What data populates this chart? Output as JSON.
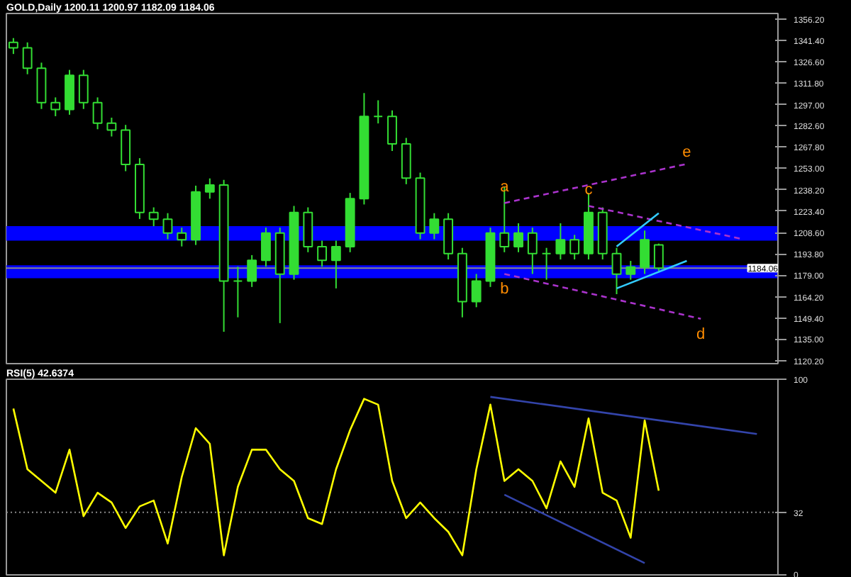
{
  "chart_data": [
    {
      "type": "candlestick",
      "title": "GOLD,Daily 1200.11 1200.97 1182.09 1184.06",
      "color": "#33dd33",
      "categories": [
        null,
        null,
        null,
        null,
        null,
        null,
        null,
        null,
        null,
        null,
        null,
        null,
        null,
        null,
        null,
        null,
        null,
        null,
        null,
        null,
        null,
        null,
        null,
        null,
        null,
        null,
        null,
        null,
        null,
        null,
        null,
        null,
        null,
        null,
        null,
        null,
        null,
        null,
        null,
        null,
        null,
        null,
        null,
        null,
        null,
        null,
        null,
        null,
        null,
        null,
        null,
        null,
        null,
        null,
        null
      ],
      "ohlc": [
        [
          1340,
          1343,
          1332,
          1336.3
        ],
        [
          1336.3,
          1340,
          1318,
          1322.1
        ],
        [
          1322.1,
          1326,
          1294,
          1298.4
        ],
        [
          1298.4,
          1302,
          1289,
          1293.6
        ],
        [
          1293.6,
          1321,
          1290,
          1317.3
        ],
        [
          1317.3,
          1321,
          1294,
          1298.4
        ],
        [
          1298.4,
          1302,
          1280,
          1284.2
        ],
        [
          1284.2,
          1288,
          1275,
          1279.4
        ],
        [
          1279.4,
          1283,
          1251,
          1255.7
        ],
        [
          1255.7,
          1260,
          1218,
          1222.5
        ],
        [
          1222.5,
          1226,
          1213,
          1217.8
        ],
        [
          1217.8,
          1222,
          1204,
          1208.3
        ],
        [
          1208.3,
          1212,
          1199,
          1203.6
        ],
        [
          1203.6,
          1241,
          1200,
          1236.7
        ],
        [
          1236.7,
          1246,
          1232,
          1241.5
        ],
        [
          1241.5,
          1245,
          1140,
          1175.1
        ],
        [
          1175.1,
          1185,
          1150,
          1175.1
        ],
        [
          1175.1,
          1193,
          1171,
          1189.4
        ],
        [
          1189.4,
          1212,
          1185,
          1208.3
        ],
        [
          1208.3,
          1212,
          1146,
          1179.9
        ],
        [
          1179.9,
          1227,
          1176,
          1222.5
        ],
        [
          1222.5,
          1226,
          1195,
          1198.8
        ],
        [
          1198.8,
          1203,
          1185,
          1189.4
        ],
        [
          1189.4,
          1203,
          1170,
          1198.8
        ],
        [
          1198.8,
          1236,
          1195,
          1232.0
        ],
        [
          1232.0,
          1305,
          1228,
          1288.9
        ],
        [
          1288.9,
          1300,
          1284,
          1288.9
        ],
        [
          1288.9,
          1293,
          1265,
          1269.9
        ],
        [
          1269.9,
          1274,
          1242,
          1246.2
        ],
        [
          1246.2,
          1250,
          1204,
          1208.3
        ],
        [
          1208.3,
          1222,
          1204,
          1217.8
        ],
        [
          1217.8,
          1222,
          1190,
          1194.1
        ],
        [
          1194.1,
          1198,
          1150,
          1160.9
        ],
        [
          1160.9,
          1180,
          1157,
          1175.1
        ],
        [
          1175.1,
          1212,
          1171,
          1208.3
        ],
        [
          1208.3,
          1240,
          1195,
          1198.8
        ],
        [
          1198.8,
          1215,
          1195,
          1208.3
        ],
        [
          1208.3,
          1212,
          1180,
          1194.1
        ],
        [
          1194.1,
          1198,
          1176,
          1194.1
        ],
        [
          1194.1,
          1215,
          1190,
          1203.6
        ],
        [
          1203.6,
          1207,
          1190,
          1194.1
        ],
        [
          1194.1,
          1236,
          1190,
          1222.5
        ],
        [
          1222.5,
          1226,
          1190,
          1194.1
        ],
        [
          1194.1,
          1198,
          1166,
          1179.9
        ],
        [
          1179.9,
          1189,
          1176,
          1184.7
        ],
        [
          1184.7,
          1210,
          1180,
          1203.6
        ],
        [
          1200.11,
          1200.97,
          1182.09,
          1184.06
        ],
        null,
        null,
        null,
        null,
        null,
        null,
        null,
        null
      ],
      "ylim": [
        1118,
        1360
      ],
      "yticks": [
        {
          "value": 1356.2,
          "label": "1356.20"
        },
        {
          "value": 1341.4,
          "label": "1341.40"
        },
        {
          "value": 1326.6,
          "label": "1326.60"
        },
        {
          "value": 1311.8,
          "label": "1311.80"
        },
        {
          "value": 1297.0,
          "label": "1297.00"
        },
        {
          "value": 1282.6,
          "label": "1282.60"
        },
        {
          "value": 1267.8,
          "label": "1267.80"
        },
        {
          "value": 1253.0,
          "label": "1253.00"
        },
        {
          "value": 1238.2,
          "label": "1238.20"
        },
        {
          "value": 1223.4,
          "label": "1223.40"
        },
        {
          "value": 1208.6,
          "label": "1208.60"
        },
        {
          "value": 1193.8,
          "label": "1193.80"
        },
        {
          "value": 1179.0,
          "label": "1179.00"
        },
        {
          "value": 1164.2,
          "label": "1164.20"
        },
        {
          "value": 1149.4,
          "label": "1149.40"
        },
        {
          "value": 1135.0,
          "label": "1135.00"
        },
        {
          "value": 1120.2,
          "label": "1120.20"
        }
      ],
      "tick_labels": "y",
      "grid": false,
      "bands": [
        {
          "axis": "y",
          "from": 1203,
          "to": 1213,
          "color": "#0000ff"
        },
        {
          "axis": "y",
          "from": 1177,
          "to": 1186,
          "color": "#0000ff"
        }
      ],
      "ref_lines": [
        {
          "axis": "y",
          "value": 1184.06,
          "label": "1184.06",
          "color": "#888888"
        }
      ],
      "series": [
        {
          "type": "line",
          "color": "#aa33cc",
          "line_style": "dashed",
          "values": [
            null,
            null,
            null,
            null,
            null,
            null,
            null,
            null,
            null,
            null,
            null,
            null,
            null,
            null,
            null,
            null,
            null,
            null,
            null,
            null,
            null,
            null,
            null,
            null,
            null,
            null,
            null,
            null,
            null,
            null,
            null,
            null,
            null,
            null,
            null,
            1229,
            null,
            null,
            null,
            null,
            null,
            null,
            null,
            null,
            null,
            null,
            null,
            null,
            1256,
            null,
            null,
            null,
            null,
            null,
            null
          ],
          "value_labels": [
            null,
            null,
            null,
            null,
            null,
            null,
            null,
            null,
            null,
            null,
            null,
            null,
            null,
            null,
            null,
            null,
            null,
            null,
            null,
            null,
            null,
            null,
            null,
            null,
            null,
            null,
            null,
            null,
            null,
            null,
            null,
            null,
            null,
            null,
            null,
            "a",
            null,
            null,
            null,
            null,
            null,
            null,
            null,
            null,
            null,
            null,
            null,
            null,
            "e",
            null,
            null,
            null,
            null,
            null,
            null
          ]
        },
        {
          "type": "line",
          "color": "#aa33cc",
          "line_style": "dashed",
          "values": [
            null,
            null,
            null,
            null,
            null,
            null,
            null,
            null,
            null,
            null,
            null,
            null,
            null,
            null,
            null,
            null,
            null,
            null,
            null,
            null,
            null,
            null,
            null,
            null,
            null,
            null,
            null,
            null,
            null,
            null,
            null,
            null,
            null,
            null,
            null,
            1180,
            null,
            null,
            null,
            null,
            null,
            null,
            null,
            null,
            null,
            null,
            null,
            null,
            null,
            1149,
            null,
            null,
            null,
            null,
            null
          ],
          "value_labels": [
            null,
            null,
            null,
            null,
            null,
            null,
            null,
            null,
            null,
            null,
            null,
            null,
            null,
            null,
            null,
            null,
            null,
            null,
            null,
            null,
            null,
            null,
            null,
            null,
            null,
            null,
            null,
            null,
            null,
            null,
            null,
            null,
            null,
            null,
            null,
            "b",
            null,
            null,
            null,
            null,
            null,
            null,
            null,
            null,
            null,
            null,
            null,
            null,
            null,
            "d",
            null,
            null,
            null,
            null,
            null
          ]
        },
        {
          "type": "line",
          "color": "#aa33cc",
          "line_style": "dashed",
          "values": [
            null,
            null,
            null,
            null,
            null,
            null,
            null,
            null,
            null,
            null,
            null,
            null,
            null,
            null,
            null,
            null,
            null,
            null,
            null,
            null,
            null,
            null,
            null,
            null,
            null,
            null,
            null,
            null,
            null,
            null,
            null,
            null,
            null,
            null,
            null,
            null,
            null,
            null,
            null,
            null,
            null,
            1227,
            null,
            null,
            null,
            null,
            null,
            null,
            null,
            null,
            null,
            null,
            1204,
            null,
            null
          ],
          "value_labels": [
            null,
            null,
            null,
            null,
            null,
            null,
            null,
            null,
            null,
            null,
            null,
            null,
            null,
            null,
            null,
            null,
            null,
            null,
            null,
            null,
            null,
            null,
            null,
            null,
            null,
            null,
            null,
            null,
            null,
            null,
            null,
            null,
            null,
            null,
            null,
            null,
            null,
            null,
            null,
            null,
            null,
            "c",
            null,
            null,
            null,
            null,
            null,
            null,
            null,
            null,
            null,
            null,
            null,
            null,
            null
          ]
        },
        {
          "type": "line",
          "color": "#33ccff",
          "line_style": "solid",
          "values": [
            null,
            null,
            null,
            null,
            null,
            null,
            null,
            null,
            null,
            null,
            null,
            null,
            null,
            null,
            null,
            null,
            null,
            null,
            null,
            null,
            null,
            null,
            null,
            null,
            null,
            null,
            null,
            null,
            null,
            null,
            null,
            null,
            null,
            null,
            null,
            null,
            null,
            null,
            null,
            null,
            null,
            null,
            null,
            1199,
            null,
            null,
            1222,
            null,
            null,
            null,
            null,
            null,
            null,
            null,
            null
          ]
        },
        {
          "type": "line",
          "color": "#33ccff",
          "line_style": "solid",
          "values": [
            null,
            null,
            null,
            null,
            null,
            null,
            null,
            null,
            null,
            null,
            null,
            null,
            null,
            null,
            null,
            null,
            null,
            null,
            null,
            null,
            null,
            null,
            null,
            null,
            null,
            null,
            null,
            null,
            null,
            null,
            null,
            null,
            null,
            null,
            null,
            null,
            null,
            null,
            null,
            null,
            null,
            null,
            null,
            1170,
            null,
            null,
            null,
            null,
            1189,
            null,
            null,
            null,
            null,
            null,
            null
          ]
        }
      ]
    },
    {
      "type": "line",
      "title": "RSI(5) 42.6374",
      "categories": [
        null,
        null,
        null,
        null,
        null,
        null,
        null,
        null,
        null,
        null,
        null,
        null,
        null,
        null,
        null,
        null,
        null,
        null,
        null,
        null,
        null,
        null,
        null,
        null,
        null,
        null,
        null,
        null,
        null,
        null,
        null,
        null,
        null,
        null,
        null,
        null,
        null,
        null,
        null,
        null,
        null,
        null,
        null,
        null,
        null,
        null,
        null,
        null,
        null,
        null,
        null,
        null,
        null,
        null,
        null
      ],
      "ylim": [
        0,
        100
      ],
      "yticks": [
        0,
        32,
        100
      ],
      "tick_labels": "y",
      "grid": false,
      "ref_lines": [
        {
          "axis": "y",
          "value": 32,
          "color": "#888888",
          "line_style": "dotted"
        }
      ],
      "series": [
        {
          "color": "#ffff00",
          "line_style": "solid",
          "values": [
            85,
            54,
            48,
            42,
            64,
            30,
            42,
            37,
            24,
            35,
            38,
            16,
            50,
            75,
            67,
            10,
            45,
            64,
            64,
            54,
            48,
            29,
            26,
            54,
            74,
            90,
            87,
            48,
            29,
            37,
            29,
            22,
            10,
            54,
            87,
            48,
            54,
            48,
            34,
            58,
            45,
            80,
            42,
            38,
            19,
            79,
            43,
            null,
            null,
            null,
            null,
            null,
            null,
            null,
            null
          ]
        },
        {
          "color": "#3344aa",
          "line_style": "solid",
          "values": [
            null,
            null,
            null,
            null,
            null,
            null,
            null,
            null,
            null,
            null,
            null,
            null,
            null,
            null,
            null,
            null,
            null,
            null,
            null,
            null,
            null,
            null,
            null,
            null,
            null,
            null,
            null,
            null,
            null,
            null,
            null,
            null,
            null,
            null,
            91,
            null,
            null,
            null,
            null,
            null,
            null,
            null,
            null,
            null,
            null,
            null,
            null,
            null,
            null,
            null,
            null,
            null,
            null,
            72,
            null
          ]
        },
        {
          "color": "#3344aa",
          "line_style": "solid",
          "values": [
            null,
            null,
            null,
            null,
            null,
            null,
            null,
            null,
            null,
            null,
            null,
            null,
            null,
            null,
            null,
            null,
            null,
            null,
            null,
            null,
            null,
            null,
            null,
            null,
            null,
            null,
            null,
            null,
            null,
            null,
            null,
            null,
            null,
            null,
            null,
            41,
            null,
            null,
            null,
            null,
            null,
            null,
            null,
            null,
            null,
            6,
            null,
            null,
            null,
            null,
            null,
            null,
            null,
            null,
            null
          ]
        }
      ]
    }
  ]
}
